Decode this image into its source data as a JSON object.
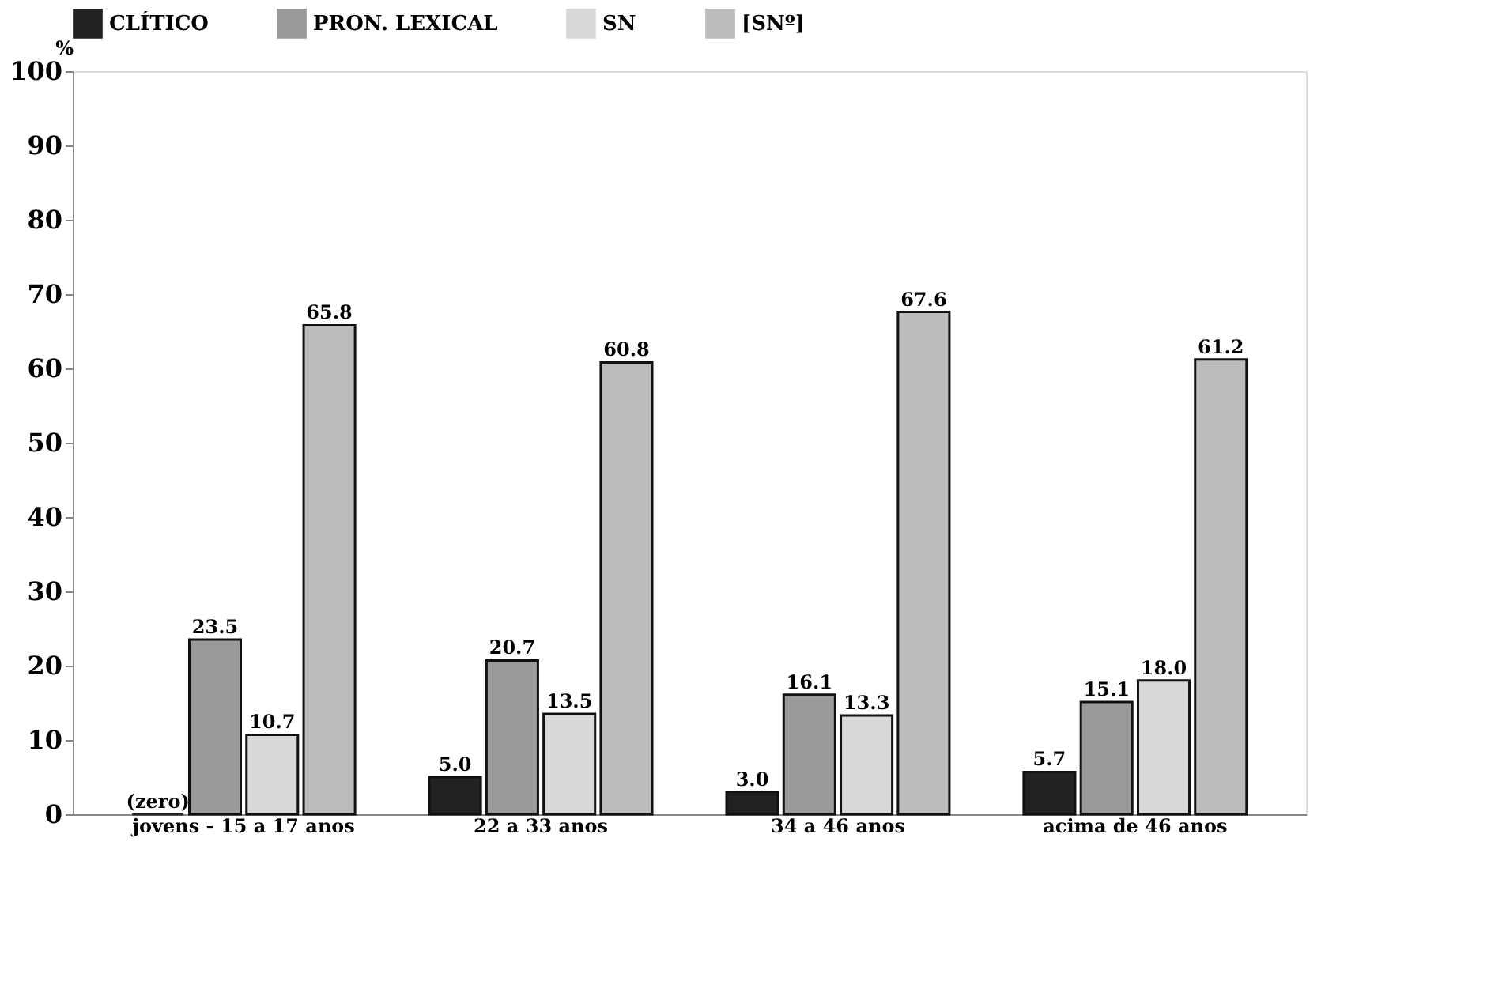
{
  "chart_data": {
    "type": "bar",
    "ylabel": "%",
    "categories": [
      "jovens - 15 a 17 anos",
      "22 a 33 anos",
      "34 a 46 anos",
      "acima de 46 anos"
    ],
    "series": [
      {
        "name": "CLÍTICO",
        "color": "#222222",
        "values": [
          0,
          5.0,
          3.0,
          5.7
        ],
        "value_labels": [
          "(zero)",
          "5.0",
          "3.0",
          "5.7"
        ]
      },
      {
        "name": "PRON. LEXICAL",
        "color": "#9a9a9a",
        "values": [
          23.5,
          20.7,
          16.1,
          15.1
        ],
        "value_labels": [
          "23.5",
          "20.7",
          "16.1",
          "15.1"
        ]
      },
      {
        "name": "SN",
        "color": "#d8d8d8",
        "values": [
          10.7,
          13.5,
          13.3,
          18.0
        ],
        "value_labels": [
          "10.7",
          "13.5",
          "13.3",
          "18.0"
        ]
      },
      {
        "name": "[SNº]",
        "color": "#bcbcbc",
        "values": [
          65.8,
          60.8,
          67.6,
          61.2
        ],
        "value_labels": [
          "65.8",
          "60.8",
          "67.6",
          "61.2"
        ]
      }
    ],
    "ylim": [
      0,
      100
    ],
    "yticks": [
      0,
      10,
      20,
      30,
      40,
      50,
      60,
      70,
      80,
      90,
      100
    ],
    "grid": false,
    "legend": "top"
  }
}
